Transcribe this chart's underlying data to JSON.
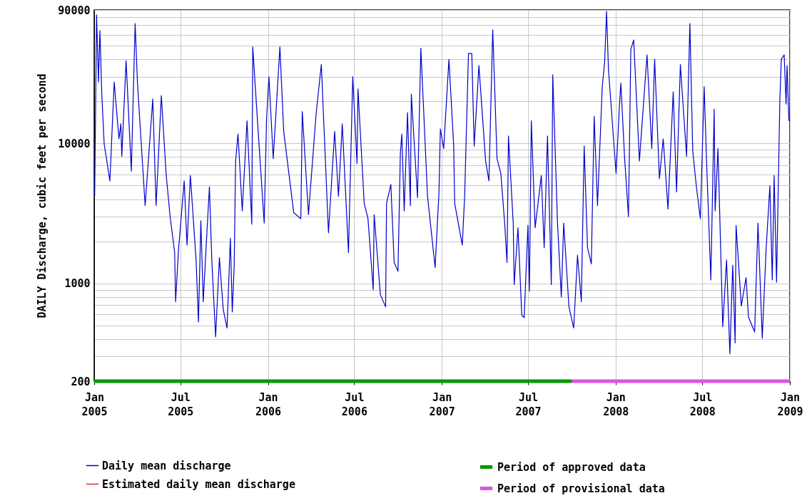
{
  "chart_data": {
    "type": "line",
    "ylabel": "DAILY Discharge, cubic feet per second",
    "log": true,
    "grid": true,
    "legend": "bottom",
    "line_style": "solid",
    "xlim": [
      "2005-01-01",
      "2009-01-01"
    ],
    "xticks": [
      {
        "value": "2005-01-01",
        "label": "Jan 2005"
      },
      {
        "value": "2005-07-01",
        "label": "Jul 2005"
      },
      {
        "value": "2006-01-01",
        "label": "Jan 2006"
      },
      {
        "value": "2006-07-01",
        "label": "Jul 2006"
      },
      {
        "value": "2007-01-01",
        "label": "Jan 2007"
      },
      {
        "value": "2007-07-01",
        "label": "Jul 2007"
      },
      {
        "value": "2008-01-01",
        "label": "Jan 2008"
      },
      {
        "value": "2008-07-01",
        "label": "Jul 2008"
      },
      {
        "value": "2009-01-01",
        "label": "Jan 2009"
      }
    ],
    "ylim": [
      200,
      90000
    ],
    "yticks": [
      200,
      {
        "value": 300,
        "label": null
      },
      {
        "value": 400,
        "label": null
      },
      {
        "value": 500,
        "label": null
      },
      {
        "value": 600,
        "label": null
      },
      {
        "value": 700,
        "label": null
      },
      {
        "value": 800,
        "label": null
      },
      {
        "value": 900,
        "label": null
      },
      1000,
      {
        "value": 2000,
        "label": null
      },
      {
        "value": 3000,
        "label": null
      },
      {
        "value": 4000,
        "label": null
      },
      {
        "value": 5000,
        "label": null
      },
      {
        "value": 6000,
        "label": null
      },
      {
        "value": 7000,
        "label": null
      },
      {
        "value": 8000,
        "label": null
      },
      {
        "value": 9000,
        "label": null
      },
      10000,
      {
        "value": 20000,
        "label": null
      },
      {
        "value": 30000,
        "label": null
      },
      {
        "value": 40000,
        "label": null
      },
      {
        "value": 50000,
        "label": null
      },
      {
        "value": 60000,
        "label": null
      },
      {
        "value": 70000,
        "label": null
      },
      {
        "value": 80000,
        "label": null
      },
      90000
    ],
    "series": [
      {
        "name": "Daily mean discharge",
        "color": "#0000cc",
        "x": [
          "2005-01-02",
          "2005-01-06",
          "2005-01-10",
          "2005-01-13",
          "2005-01-17",
          "2005-01-22",
          "2005-02-03",
          "2005-02-12",
          "2005-02-22",
          "2005-02-26",
          "2005-02-28",
          "2005-03-09",
          "2005-03-20",
          "2005-03-28",
          "2005-04-02",
          "2005-04-18",
          "2005-05-04",
          "2005-05-11",
          "2005-05-22",
          "2005-06-01",
          "2005-06-09",
          "2005-06-19",
          "2005-06-21",
          "2005-06-27",
          "2005-07-09",
          "2005-07-15",
          "2005-07-22",
          "2005-08-03",
          "2005-08-08",
          "2005-08-13",
          "2005-08-18",
          "2005-08-24",
          "2005-08-31",
          "2005-09-05",
          "2005-09-13",
          "2005-09-21",
          "2005-09-29",
          "2005-10-07",
          "2005-10-14",
          "2005-10-18",
          "2005-10-22",
          "2005-10-25",
          "2005-10-30",
          "2005-11-08",
          "2005-11-18",
          "2005-11-28",
          "2005-11-30",
          "2005-12-08",
          "2005-12-24",
          "2005-12-29",
          "2006-01-03",
          "2006-01-12",
          "2006-01-26",
          "2006-02-03",
          "2006-02-19",
          "2006-02-24",
          "2006-03-11",
          "2006-03-14",
          "2006-03-27",
          "2006-04-12",
          "2006-04-23",
          "2006-05-08",
          "2006-05-21",
          "2006-05-29",
          "2006-06-06",
          "2006-06-19",
          "2006-06-28",
          "2006-07-07",
          "2006-07-09",
          "2006-07-22",
          "2006-07-30",
          "2006-08-10",
          "2006-08-12",
          "2006-08-25",
          "2006-09-05",
          "2006-09-07",
          "2006-09-16",
          "2006-09-23",
          "2006-10-01",
          "2006-10-06",
          "2006-10-09",
          "2006-10-14",
          "2006-10-21",
          "2006-10-27",
          "2006-10-29",
          "2006-11-11",
          "2006-11-18",
          "2006-12-02",
          "2006-12-18",
          "2006-12-26",
          "2006-12-29",
          "2007-01-05",
          "2007-01-16",
          "2007-01-26",
          "2007-01-28",
          "2007-02-13",
          "2007-02-18",
          "2007-02-26",
          "2007-03-05",
          "2007-03-10",
          "2007-03-20",
          "2007-04-03",
          "2007-04-10",
          "2007-04-18",
          "2007-04-27",
          "2007-05-05",
          "2007-05-13",
          "2007-05-18",
          "2007-05-21",
          "2007-05-31",
          "2007-06-02",
          "2007-06-10",
          "2007-06-18",
          "2007-06-23",
          "2007-07-01",
          "2007-07-04",
          "2007-07-08",
          "2007-07-16",
          "2007-07-29",
          "2007-08-04",
          "2007-08-11",
          "2007-08-19",
          "2007-08-22",
          "2007-09-01",
          "2007-09-09",
          "2007-09-14",
          "2007-09-25",
          "2007-10-05",
          "2007-10-13",
          "2007-10-21",
          "2007-10-27",
          "2007-11-03",
          "2007-11-11",
          "2007-11-17",
          "2007-11-24",
          "2007-12-04",
          "2007-12-09",
          "2007-12-13",
          "2007-12-17",
          "2008-01-02",
          "2008-01-09",
          "2008-01-12",
          "2008-01-20",
          "2008-01-28",
          "2008-02-02",
          "2008-02-08",
          "2008-02-20",
          "2008-03-07",
          "2008-03-17",
          "2008-03-23",
          "2008-04-02",
          "2008-04-10",
          "2008-04-20",
          "2008-05-01",
          "2008-05-08",
          "2008-05-16",
          "2008-05-29",
          "2008-06-05",
          "2008-06-11",
          "2008-06-19",
          "2008-06-27",
          "2008-07-05",
          "2008-07-10",
          "2008-07-19",
          "2008-07-26",
          "2008-07-28",
          "2008-08-03",
          "2008-08-13",
          "2008-08-21",
          "2008-08-28",
          "2008-09-03",
          "2008-09-08",
          "2008-09-10",
          "2008-09-21",
          "2008-10-01",
          "2008-10-06",
          "2008-10-19",
          "2008-10-26",
          "2008-11-04",
          "2008-11-12",
          "2008-11-20",
          "2008-11-25",
          "2008-11-29",
          "2008-12-04",
          "2008-12-11",
          "2008-12-14",
          "2008-12-20",
          "2008-12-24",
          "2008-12-26",
          "2008-12-30"
        ],
        "values": [
          4200,
          83000,
          27500,
          64000,
          22500,
          9900,
          5400,
          27500,
          10800,
          13800,
          8100,
          39100,
          6350,
          72000,
          26600,
          3600,
          20800,
          3600,
          22000,
          6100,
          3100,
          1660,
          740,
          1730,
          5400,
          1880,
          5900,
          1470,
          530,
          2800,
          740,
          1800,
          4900,
          1470,
          415,
          1530,
          650,
          480,
          2100,
          625,
          1350,
          7500,
          11700,
          3300,
          14500,
          2650,
          49000,
          18400,
          2700,
          15000,
          30000,
          7800,
          49000,
          12200,
          4400,
          3200,
          2900,
          16900,
          3100,
          16200,
          36700,
          2300,
          12200,
          4200,
          13800,
          1660,
          30000,
          7200,
          24500,
          3750,
          2900,
          900,
          3100,
          830,
          680,
          3750,
          5100,
          1410,
          1220,
          8500,
          11700,
          3300,
          16600,
          3600,
          22500,
          4100,
          48000,
          4200,
          1300,
          4400,
          12700,
          9200,
          39900,
          9600,
          3750,
          1880,
          4200,
          44000,
          44000,
          9600,
          36000,
          7500,
          5400,
          65000,
          7800,
          6100,
          2700,
          1410,
          11300,
          2700,
          980,
          2500,
          590,
          570,
          2600,
          880,
          14500,
          2500,
          5900,
          1800,
          11300,
          980,
          31000,
          2700,
          800,
          2700,
          680,
          480,
          1590,
          740,
          9600,
          1800,
          1380,
          15600,
          3600,
          25500,
          38000,
          88000,
          34000,
          6100,
          18400,
          27000,
          7800,
          3000,
          47000,
          55000,
          7500,
          43000,
          9200,
          40000,
          5600,
          10800,
          3400,
          23400,
          4500,
          36700,
          8100,
          72000,
          8800,
          4800,
          2900,
          25500,
          7500,
          1060,
          17600,
          3300,
          9200,
          490,
          1470,
          313,
          1350,
          375,
          2600,
          690,
          1100,
          575,
          450,
          2700,
          406,
          1730,
          5000,
          1060,
          5900,
          1020,
          20800,
          40000,
          43000,
          19100,
          36000,
          14500
        ]
      },
      {
        "name": "Estimated daily mean discharge",
        "color": "#cc3333"
      },
      {
        "name": "Period of approved data",
        "type": "line",
        "color": "#009900",
        "x": [
          "2005-01-01",
          "2007-10-01"
        ],
        "values": [
          200,
          200
        ]
      },
      {
        "name": "Period of provisional data",
        "type": "line",
        "color": "#dd55dd",
        "x": [
          "2007-10-01",
          "2009-01-01"
        ],
        "values": [
          200,
          200
        ]
      }
    ]
  }
}
